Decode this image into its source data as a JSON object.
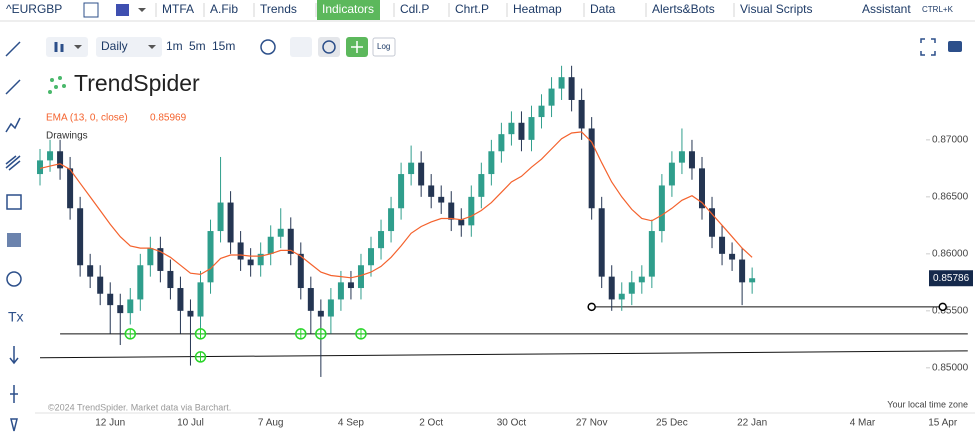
{
  "toolbar": {
    "symbol": "^EURGBP",
    "buttons": [
      "MTFA",
      "A.Fib",
      "Trends",
      "Indicators",
      "Cdl.P",
      "Chrt.P",
      "Heatmap",
      "Data",
      "Alerts&Bots",
      "Visual Scripts"
    ],
    "assistant": "Assistant",
    "shortcut": "CTRL+K"
  },
  "timeframe": {
    "interval": "Daily",
    "ranges": [
      "1m",
      "5m",
      "15m"
    ],
    "log": "Log"
  },
  "logo": "TrendSpider",
  "drawings_label": "Drawings",
  "footer": {
    "copyright": "©2024 TrendSpider. Market data via Barchart.",
    "timezone": "Your local time zone"
  },
  "chart_data": {
    "type": "candlestick",
    "categories": [
      null,
      null,
      null,
      null,
      null,
      null,
      null,
      "12 Jun",
      null,
      null,
      null,
      null,
      null,
      null,
      null,
      "10 Jul",
      null,
      null,
      null,
      null,
      null,
      null,
      null,
      "7 Aug",
      null,
      null,
      null,
      null,
      null,
      null,
      null,
      "4 Sep",
      null,
      null,
      null,
      null,
      null,
      null,
      null,
      "2 Oct",
      null,
      null,
      null,
      null,
      null,
      null,
      null,
      "30 Oct",
      null,
      null,
      null,
      null,
      null,
      null,
      null,
      "27 Nov",
      null,
      null,
      null,
      null,
      null,
      null,
      null,
      "25 Dec",
      null,
      null,
      null,
      null,
      null,
      null,
      null,
      "22 Jan",
      null,
      null,
      null,
      null,
      null,
      null,
      null,
      null,
      null,
      null,
      "4 Mar",
      null,
      null,
      null,
      null,
      null,
      null,
      null,
      "15 Apr"
    ],
    "open": [
      0.867,
      0.8682,
      0.869,
      0.8675,
      0.864,
      0.859,
      0.858,
      0.8565,
      0.8555,
      0.8548,
      0.856,
      0.859,
      0.8605,
      0.8585,
      0.857,
      0.855,
      0.8545,
      0.8575,
      0.862,
      0.8645,
      0.861,
      0.8595,
      0.859,
      0.86,
      0.8615,
      0.8622,
      0.86,
      0.857,
      0.855,
      0.8545,
      0.856,
      0.8575,
      0.857,
      0.859,
      0.8605,
      0.862,
      0.864,
      0.867,
      0.868,
      0.866,
      0.865,
      0.8645,
      0.863,
      0.8625,
      0.865,
      0.867,
      0.869,
      0.8705,
      0.8715,
      0.87,
      0.872,
      0.873,
      0.8745,
      0.8755,
      0.8735,
      0.871,
      0.864,
      0.858,
      0.856,
      0.8565,
      0.8575,
      0.858,
      0.862,
      0.866,
      0.868,
      0.869,
      0.8675,
      0.864,
      0.8615,
      0.86,
      0.8595,
      0.8575,
      null,
      null,
      null,
      null,
      null,
      null,
      null,
      null,
      null,
      null,
      null,
      null,
      null,
      null,
      null,
      null,
      null,
      null,
      null
    ],
    "high": [
      0.8692,
      0.87,
      0.87,
      0.8685,
      0.865,
      0.86,
      0.859,
      0.8575,
      0.8565,
      0.857,
      0.86,
      0.8615,
      0.8615,
      0.8595,
      0.858,
      0.856,
      0.8585,
      0.863,
      0.8685,
      0.8655,
      0.862,
      0.8605,
      0.861,
      0.8625,
      0.864,
      0.8632,
      0.861,
      0.858,
      0.856,
      0.857,
      0.8585,
      0.8585,
      0.86,
      0.8615,
      0.863,
      0.865,
      0.868,
      0.8695,
      0.869,
      0.867,
      0.866,
      0.8655,
      0.864,
      0.866,
      0.868,
      0.87,
      0.8715,
      0.8725,
      0.8725,
      0.873,
      0.874,
      0.8755,
      0.8765,
      0.8765,
      0.8745,
      0.872,
      0.865,
      0.859,
      0.8575,
      0.8585,
      0.859,
      0.863,
      0.867,
      0.869,
      0.871,
      0.87,
      0.8685,
      0.865,
      0.8625,
      0.861,
      0.8605,
      0.8588,
      null,
      null,
      null,
      null,
      null,
      null,
      null,
      null,
      null,
      null,
      null,
      null,
      null,
      null,
      null,
      null,
      null,
      null,
      null
    ],
    "low": [
      0.866,
      0.8672,
      0.8665,
      0.863,
      0.858,
      0.857,
      0.8555,
      0.853,
      0.852,
      0.8538,
      0.855,
      0.858,
      0.8575,
      0.856,
      0.853,
      0.8502,
      0.853,
      0.8565,
      0.861,
      0.86,
      0.8585,
      0.858,
      0.858,
      0.859,
      0.8605,
      0.859,
      0.856,
      0.853,
      0.8492,
      0.853,
      0.855,
      0.856,
      0.856,
      0.858,
      0.8595,
      0.861,
      0.863,
      0.866,
      0.865,
      0.864,
      0.8635,
      0.862,
      0.8615,
      0.8615,
      0.864,
      0.866,
      0.868,
      0.8695,
      0.869,
      0.869,
      0.871,
      0.872,
      0.8735,
      0.8725,
      0.87,
      0.863,
      0.857,
      0.855,
      0.855,
      0.8555,
      0.8565,
      0.857,
      0.861,
      0.865,
      0.867,
      0.8665,
      0.863,
      0.8605,
      0.859,
      0.8585,
      0.8555,
      0.8565,
      null,
      null,
      null,
      null,
      null,
      null,
      null,
      null,
      null,
      null,
      null,
      null,
      null,
      null,
      null,
      null,
      null,
      null,
      null
    ],
    "close": [
      0.8682,
      0.869,
      0.8675,
      0.864,
      0.859,
      0.858,
      0.8565,
      0.8555,
      0.8548,
      0.856,
      0.859,
      0.8605,
      0.8585,
      0.857,
      0.855,
      0.8545,
      0.8575,
      0.862,
      0.8645,
      0.861,
      0.8595,
      0.859,
      0.86,
      0.8615,
      0.8622,
      0.86,
      0.857,
      0.855,
      0.8545,
      0.856,
      0.8575,
      0.857,
      0.859,
      0.8605,
      0.862,
      0.864,
      0.867,
      0.868,
      0.866,
      0.865,
      0.8645,
      0.863,
      0.8625,
      0.865,
      0.867,
      0.869,
      0.8705,
      0.8715,
      0.87,
      0.872,
      0.873,
      0.8745,
      0.8755,
      0.8735,
      0.871,
      0.864,
      0.858,
      0.856,
      0.8565,
      0.8575,
      0.858,
      0.862,
      0.866,
      0.868,
      0.869,
      0.8675,
      0.864,
      0.8615,
      0.86,
      0.8595,
      0.8575,
      0.85786,
      null,
      null,
      null,
      null,
      null,
      null,
      null,
      null,
      null,
      null,
      null,
      null,
      null,
      null,
      null,
      null,
      null,
      null,
      null
    ],
    "up_color": "#2f9e8c",
    "down_color": "#243552",
    "last_price": 0.85786,
    "ema": {
      "name": "EMA (13, 0, close)",
      "value": 0.85969,
      "color": "#f4622d",
      "values": [
        0.8675,
        0.8677,
        0.8679,
        0.8674,
        0.8662,
        0.865,
        0.8638,
        0.8626,
        0.8615,
        0.8607,
        0.8605,
        0.8605,
        0.8602,
        0.8597,
        0.859,
        0.8583,
        0.8582,
        0.8587,
        0.8596,
        0.8599,
        0.8599,
        0.8598,
        0.8598,
        0.86,
        0.8603,
        0.8603,
        0.8598,
        0.8591,
        0.8584,
        0.8581,
        0.858,
        0.8579,
        0.8581,
        0.8584,
        0.8589,
        0.8597,
        0.8607,
        0.8618,
        0.8624,
        0.8628,
        0.8631,
        0.8631,
        0.863,
        0.8633,
        0.8638,
        0.8645,
        0.8654,
        0.8663,
        0.8668,
        0.8676,
        0.8683,
        0.8692,
        0.8701,
        0.8706,
        0.8707,
        0.8698,
        0.868,
        0.8663,
        0.865,
        0.8639,
        0.8631,
        0.8629,
        0.8634,
        0.864,
        0.8647,
        0.8651,
        0.8645,
        0.8635,
        0.8625,
        0.8615,
        0.8605,
        0.8597,
        null,
        null,
        null,
        null,
        null,
        null,
        null,
        null,
        null,
        null,
        null,
        null,
        null,
        null,
        null,
        null,
        null,
        null,
        null
      ]
    },
    "levels": [
      {
        "start": 55,
        "end": 90,
        "y1": 0.85535,
        "y2": 0.85535
      },
      {
        "start": 2,
        "end": 92.5,
        "y1": 0.85298,
        "y2": 0.85298
      },
      {
        "start": 0,
        "end": 92.5,
        "y1": 0.85088,
        "y2": 0.85149
      }
    ],
    "markers": [
      {
        "x": 9,
        "y": 0.85298
      },
      {
        "x": 16,
        "y": 0.85298
      },
      {
        "x": 16,
        "y": 0.85096
      },
      {
        "x": 26,
        "y": 0.85298
      },
      {
        "x": 28,
        "y": 0.85298
      },
      {
        "x": 32,
        "y": 0.85298
      }
    ],
    "ylim": [
      0.8463,
      0.8792
    ],
    "yticks": [
      {
        "value": 0.85,
        "label": "0.85000"
      },
      {
        "value": 0.855,
        "label": "0.85500"
      },
      {
        "value": 0.86,
        "label": "0.86000"
      },
      {
        "value": 0.865,
        "label": "0.86500"
      },
      {
        "value": 0.87,
        "label": "0.87000"
      }
    ]
  }
}
